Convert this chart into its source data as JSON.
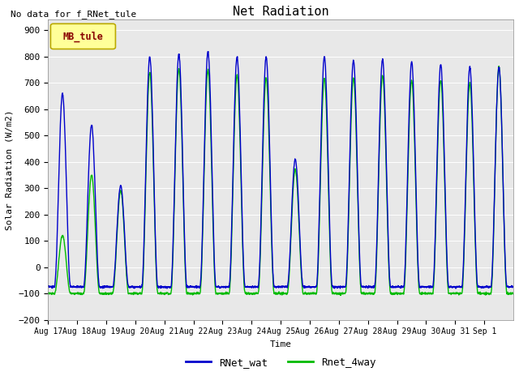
{
  "title": "Net Radiation",
  "xlabel": "Time",
  "ylabel": "Solar Radiation (W/m2)",
  "ylim": [
    -200,
    940
  ],
  "yticks": [
    -200,
    -100,
    0,
    100,
    200,
    300,
    400,
    500,
    600,
    700,
    800,
    900
  ],
  "annotation_text": "No data for f_RNet_tule",
  "legend_box_text": "MB_tule",
  "legend_box_color": "#ffff99",
  "legend_box_edge": "#bbaa00",
  "legend_box_text_color": "#880000",
  "line1_color": "#0000cc",
  "line2_color": "#00bb00",
  "line1_label": "RNet_wat",
  "line2_label": "Rnet_4way",
  "background_color": "#e8e8e8",
  "n_days": 16,
  "night_wat": -75,
  "night_4way": -100,
  "x_tick_labels": [
    "Aug 17",
    "Aug 18",
    "Aug 19",
    "Aug 20",
    "Aug 21",
    "Aug 22",
    "Aug 23",
    "Aug 24",
    "Aug 25",
    "Aug 26",
    "Aug 27",
    "Aug 28",
    "Aug 29",
    "Aug 30",
    "Aug 31",
    "Sep 1"
  ]
}
